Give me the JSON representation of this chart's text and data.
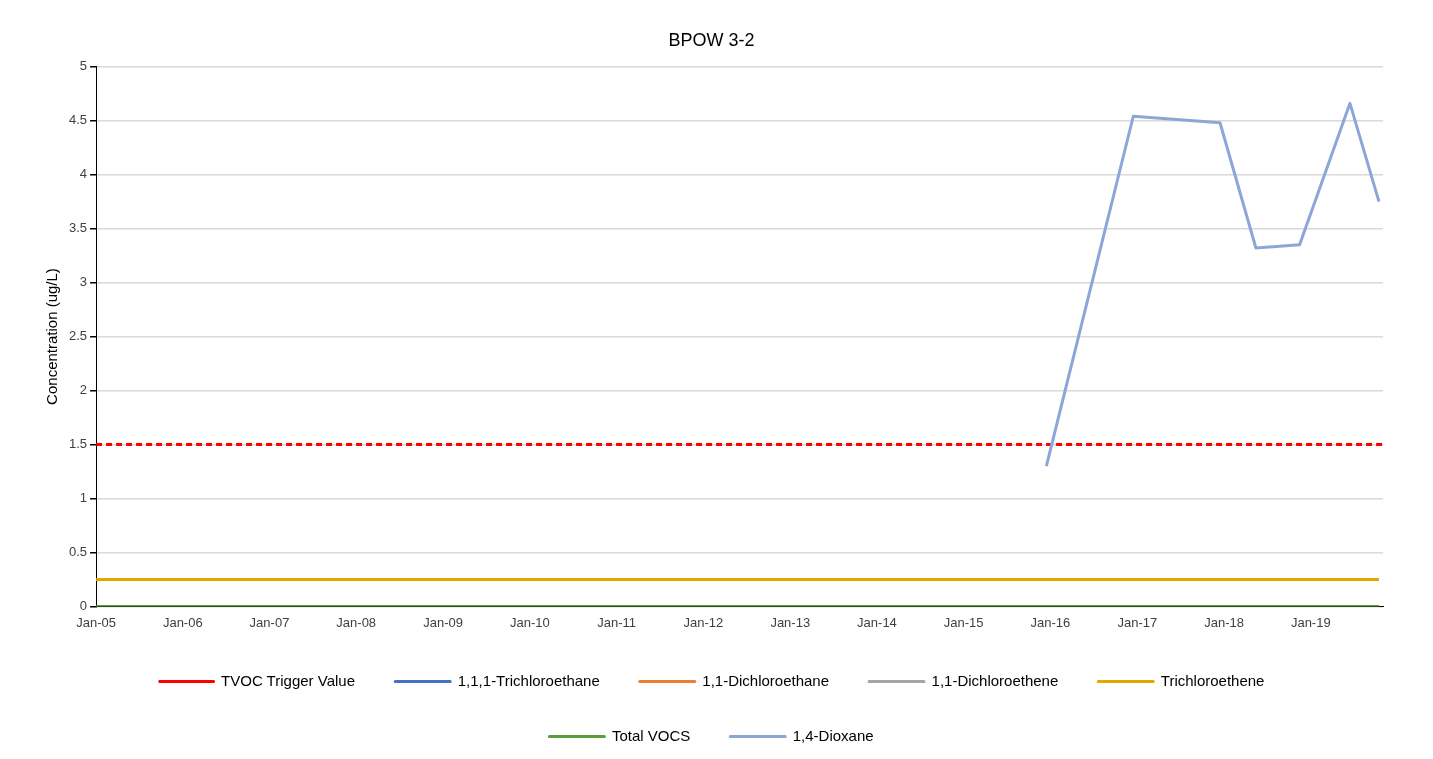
{
  "chart_data": {
    "type": "line",
    "title": "BPOW 3-2",
    "ylabel": "Concentration (ug/L)",
    "xlim": [
      "2005-01-01",
      "2019-11-01"
    ],
    "xticks": [
      {
        "value": "2005-01-01",
        "label": "Jan-05"
      },
      {
        "value": "2006-01-01",
        "label": "Jan-06"
      },
      {
        "value": "2007-01-01",
        "label": "Jan-07"
      },
      {
        "value": "2008-01-01",
        "label": "Jan-08"
      },
      {
        "value": "2009-01-01",
        "label": "Jan-09"
      },
      {
        "value": "2010-01-01",
        "label": "Jan-10"
      },
      {
        "value": "2011-01-01",
        "label": "Jan-11"
      },
      {
        "value": "2012-01-01",
        "label": "Jan-12"
      },
      {
        "value": "2013-01-01",
        "label": "Jan-13"
      },
      {
        "value": "2014-01-01",
        "label": "Jan-14"
      },
      {
        "value": "2015-01-01",
        "label": "Jan-15"
      },
      {
        "value": "2016-01-01",
        "label": "Jan-16"
      },
      {
        "value": "2017-01-01",
        "label": "Jan-17"
      },
      {
        "value": "2018-01-01",
        "label": "Jan-18"
      },
      {
        "value": "2019-01-01",
        "label": "Jan-19"
      }
    ],
    "ylim": [
      0,
      5
    ],
    "yticks": [
      0,
      0.5,
      1,
      1.5,
      2,
      2.5,
      3,
      3.5,
      4,
      4.5,
      5
    ],
    "grid": "y",
    "legend": "bottom",
    "marker": "none",
    "series": [
      {
        "name": "TVOC Trigger Value",
        "color": "#ff0000",
        "line_style": "dashed",
        "x": [
          "2005-01-01",
          "2019-11-01"
        ],
        "values": [
          1.5,
          1.5
        ]
      },
      {
        "name": "1,1,1-Trichloroethane",
        "color": "#4472c4"
      },
      {
        "name": "1,1-Dichloroethane",
        "color": "#ed7d31"
      },
      {
        "name": "1,1-Dichloroethene",
        "color": "#a5a5a5"
      },
      {
        "name": "Trichloroethene",
        "color": "#e0a800",
        "x": [
          "2005-01-01",
          "2019-10-15"
        ],
        "values": [
          0.25,
          0.25
        ]
      },
      {
        "name": "Total VOCS",
        "color": "#5b9e3a",
        "x": [
          "2005-01-01",
          "2019-10-15"
        ],
        "values": [
          0,
          0
        ]
      },
      {
        "name": "1,4-Dioxane",
        "color": "#8ea5d8",
        "x": [
          "2015-12-15",
          "2016-12-15",
          "2017-12-15",
          "2018-05-15",
          "2018-11-15",
          "2019-06-15",
          "2019-10-15"
        ],
        "values": [
          1.3,
          4.54,
          4.48,
          3.32,
          3.35,
          4.66,
          3.75
        ]
      }
    ]
  }
}
